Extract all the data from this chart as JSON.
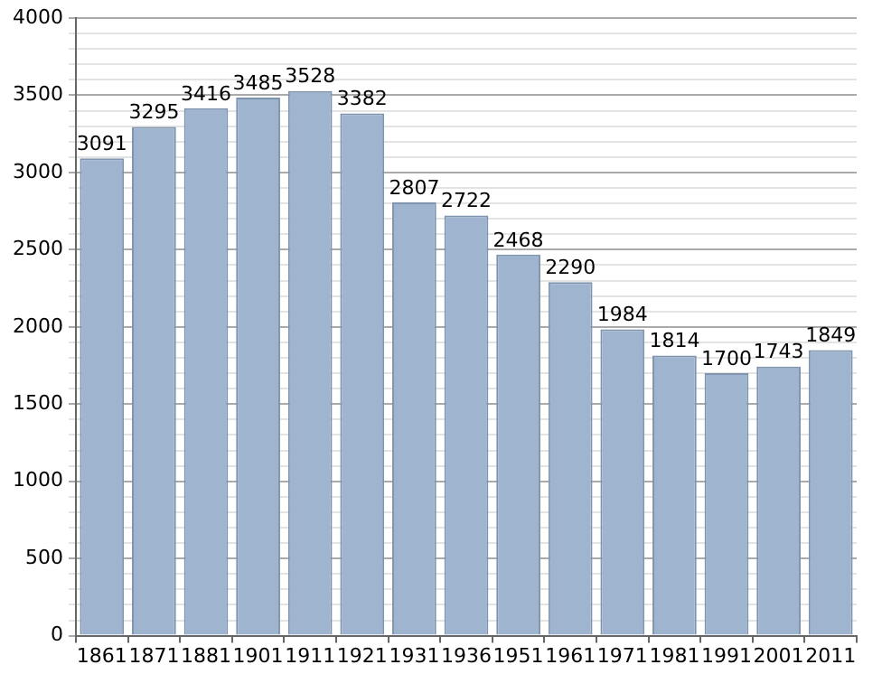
{
  "chart_data": {
    "type": "bar",
    "categories": [
      "1861",
      "1871",
      "1881",
      "1901",
      "1911",
      "1921",
      "1931",
      "1936",
      "1951",
      "1961",
      "1971",
      "1981",
      "1991",
      "2001",
      "2011"
    ],
    "values": [
      3091,
      3295,
      3416,
      3485,
      3528,
      3382,
      2807,
      2722,
      2468,
      2290,
      1984,
      1814,
      1700,
      1743,
      1849
    ],
    "color": "#9fb5cf",
    "ylim": [
      0,
      4000
    ],
    "yticks": [
      0,
      {
        "value": 100,
        "label": null
      },
      {
        "value": 200,
        "label": null
      },
      {
        "value": 300,
        "label": null
      },
      {
        "value": 400,
        "label": null
      },
      500,
      {
        "value": 600,
        "label": null
      },
      {
        "value": 700,
        "label": null
      },
      {
        "value": 800,
        "label": null
      },
      {
        "value": 900,
        "label": null
      },
      1000,
      {
        "value": 1100,
        "label": null
      },
      {
        "value": 1200,
        "label": null
      },
      {
        "value": 1300,
        "label": null
      },
      {
        "value": 1400,
        "label": null
      },
      1500,
      {
        "value": 1600,
        "label": null
      },
      {
        "value": 1700,
        "label": null
      },
      {
        "value": 1800,
        "label": null
      },
      {
        "value": 1900,
        "label": null
      },
      2000,
      {
        "value": 2100,
        "label": null
      },
      {
        "value": 2200,
        "label": null
      },
      {
        "value": 2300,
        "label": null
      },
      {
        "value": 2400,
        "label": null
      },
      2500,
      {
        "value": 2600,
        "label": null
      },
      {
        "value": 2700,
        "label": null
      },
      {
        "value": 2800,
        "label": null
      },
      {
        "value": 2900,
        "label": null
      },
      3000,
      {
        "value": 3100,
        "label": null
      },
      {
        "value": 3200,
        "label": null
      },
      {
        "value": 3300,
        "label": null
      },
      {
        "value": 3400,
        "label": null
      },
      3500,
      {
        "value": 3600,
        "label": null
      },
      {
        "value": 3700,
        "label": null
      },
      {
        "value": 3800,
        "label": null
      },
      {
        "value": 3900,
        "label": null
      },
      4000
    ],
    "grid": "y",
    "data_labels": true
  }
}
